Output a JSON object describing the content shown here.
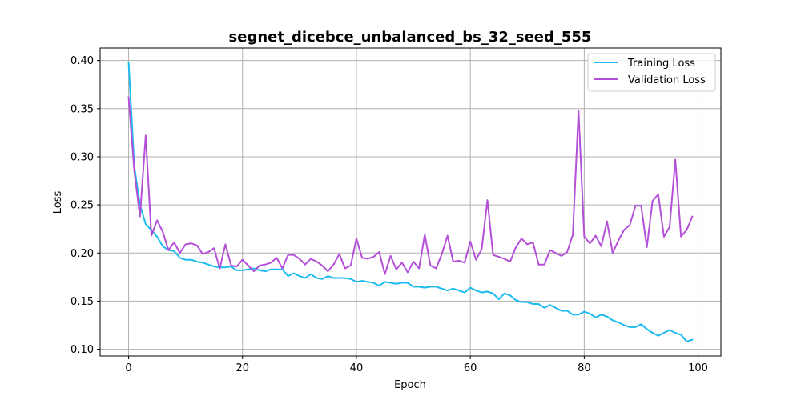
{
  "chart_data": {
    "type": "line",
    "title": "segnet_dicebce_unbalanced_bs_32_seed_555",
    "xlabel": "Epoch",
    "ylabel": "Loss",
    "xlim": [
      -5,
      104
    ],
    "ylim": [
      0.093,
      0.413
    ],
    "xticks": [
      0,
      20,
      40,
      60,
      80,
      100
    ],
    "xtick_labels": [
      "0",
      "20",
      "40",
      "60",
      "80",
      "100"
    ],
    "yticks": [
      0.1,
      0.15,
      0.2,
      0.25,
      0.3,
      0.35,
      0.4
    ],
    "ytick_labels": [
      "0.10",
      "0.15",
      "0.20",
      "0.25",
      "0.30",
      "0.35",
      "0.40"
    ],
    "grid": true,
    "legend_position": "top-right",
    "series": [
      {
        "name": "Training Loss",
        "color": "#1bbbf0",
        "x": [
          0,
          1,
          2,
          3,
          4,
          5,
          6,
          7,
          8,
          9,
          10,
          11,
          12,
          13,
          14,
          15,
          16,
          17,
          18,
          19,
          20,
          21,
          22,
          23,
          24,
          25,
          26,
          27,
          28,
          29,
          30,
          31,
          32,
          33,
          34,
          35,
          36,
          37,
          38,
          39,
          40,
          41,
          42,
          43,
          44,
          45,
          46,
          47,
          48,
          49,
          50,
          51,
          52,
          53,
          54,
          55,
          56,
          57,
          58,
          59,
          60,
          61,
          62,
          63,
          64,
          65,
          66,
          67,
          68,
          69,
          70,
          71,
          72,
          73,
          74,
          75,
          76,
          77,
          78,
          79,
          80,
          81,
          82,
          83,
          84,
          85,
          86,
          87,
          88,
          89,
          90,
          91,
          92,
          93,
          94,
          95,
          96,
          97,
          98,
          99
        ],
        "values": [
          0.398,
          0.29,
          0.25,
          0.23,
          0.224,
          0.217,
          0.207,
          0.203,
          0.202,
          0.195,
          0.193,
          0.193,
          0.191,
          0.19,
          0.188,
          0.186,
          0.185,
          0.185,
          0.186,
          0.182,
          0.182,
          0.183,
          0.184,
          0.182,
          0.181,
          0.183,
          0.183,
          0.183,
          0.176,
          0.179,
          0.176,
          0.174,
          0.178,
          0.174,
          0.173,
          0.176,
          0.174,
          0.174,
          0.174,
          0.173,
          0.17,
          0.171,
          0.17,
          0.169,
          0.166,
          0.17,
          0.169,
          0.168,
          0.169,
          0.169,
          0.165,
          0.165,
          0.164,
          0.165,
          0.165,
          0.163,
          0.161,
          0.163,
          0.161,
          0.159,
          0.164,
          0.161,
          0.159,
          0.16,
          0.158,
          0.152,
          0.158,
          0.156,
          0.151,
          0.149,
          0.149,
          0.147,
          0.147,
          0.143,
          0.146,
          0.143,
          0.14,
          0.14,
          0.136,
          0.136,
          0.139,
          0.137,
          0.133,
          0.136,
          0.134,
          0.13,
          0.128,
          0.125,
          0.123,
          0.123,
          0.126,
          0.121,
          0.117,
          0.114,
          0.117,
          0.12,
          0.117,
          0.115,
          0.108,
          0.11
        ]
      },
      {
        "name": "Validation Loss",
        "color": "#b44fd8",
        "x": [
          0,
          1,
          2,
          3,
          4,
          5,
          6,
          7,
          8,
          9,
          10,
          11,
          12,
          13,
          14,
          15,
          16,
          17,
          18,
          19,
          20,
          21,
          22,
          23,
          24,
          25,
          26,
          27,
          28,
          29,
          30,
          31,
          32,
          33,
          34,
          35,
          36,
          37,
          38,
          39,
          40,
          41,
          42,
          43,
          44,
          45,
          46,
          47,
          48,
          49,
          50,
          51,
          52,
          53,
          54,
          55,
          56,
          57,
          58,
          59,
          60,
          61,
          62,
          63,
          64,
          65,
          66,
          67,
          68,
          69,
          70,
          71,
          72,
          73,
          74,
          75,
          76,
          77,
          78,
          79,
          80,
          81,
          82,
          83,
          84,
          85,
          86,
          87,
          88,
          89,
          90,
          91,
          92,
          93,
          94,
          95,
          96,
          97,
          98,
          99
        ],
        "values": [
          0.362,
          0.285,
          0.238,
          0.322,
          0.218,
          0.234,
          0.222,
          0.203,
          0.211,
          0.2,
          0.209,
          0.21,
          0.208,
          0.199,
          0.201,
          0.205,
          0.184,
          0.209,
          0.187,
          0.186,
          0.193,
          0.187,
          0.181,
          0.187,
          0.188,
          0.19,
          0.195,
          0.184,
          0.198,
          0.198,
          0.194,
          0.188,
          0.194,
          0.191,
          0.187,
          0.181,
          0.188,
          0.199,
          0.184,
          0.187,
          0.215,
          0.195,
          0.194,
          0.196,
          0.201,
          0.178,
          0.197,
          0.183,
          0.19,
          0.18,
          0.191,
          0.184,
          0.219,
          0.187,
          0.184,
          0.199,
          0.218,
          0.191,
          0.192,
          0.19,
          0.212,
          0.193,
          0.204,
          0.255,
          0.198,
          0.196,
          0.194,
          0.191,
          0.206,
          0.215,
          0.209,
          0.211,
          0.188,
          0.188,
          0.203,
          0.2,
          0.197,
          0.201,
          0.219,
          0.348,
          0.217,
          0.21,
          0.218,
          0.207,
          0.233,
          0.2,
          0.213,
          0.224,
          0.229,
          0.249,
          0.249,
          0.206,
          0.254,
          0.261,
          0.217,
          0.227,
          0.297,
          0.217,
          0.224,
          0.238
        ]
      }
    ]
  }
}
